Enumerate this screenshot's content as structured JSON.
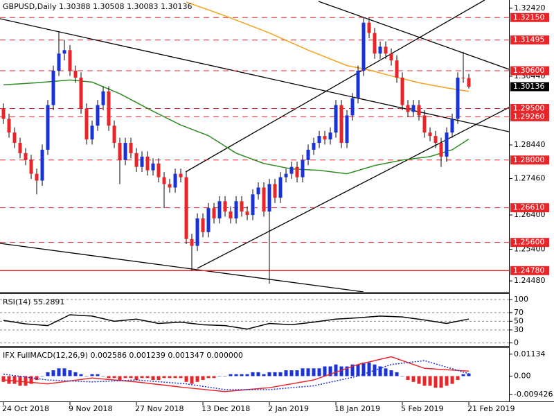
{
  "chart_data": [
    {
      "type": "candlestick",
      "title": "GBPUSD,Daily  1.30388 1.30508 1.30083 1.30136",
      "categories": [
        "24 Oct 2018",
        null,
        null,
        null,
        null,
        null,
        null,
        null,
        null,
        null,
        null,
        null,
        "9 Nov 2018",
        null,
        null,
        null,
        null,
        null,
        null,
        null,
        null,
        null,
        null,
        null,
        "27 Nov 2018",
        null,
        null,
        null,
        null,
        null,
        null,
        null,
        null,
        null,
        null,
        null,
        "13 Dec 2018",
        null,
        null,
        null,
        null,
        null,
        null,
        null,
        null,
        null,
        null,
        null,
        "2 Jan 2019",
        null,
        null,
        null,
        null,
        null,
        null,
        null,
        null,
        null,
        null,
        null,
        "18 Jan 2019",
        null,
        null,
        null,
        null,
        null,
        null,
        null,
        null,
        null,
        null,
        null,
        "5 Feb 2019",
        null,
        null,
        null,
        null,
        null,
        null,
        null,
        null,
        null,
        null,
        null,
        "21 Feb 2019"
      ],
      "open": [
        1.295,
        1.292,
        1.288,
        1.285,
        1.282,
        1.28,
        1.276,
        1.274,
        1.283,
        1.296,
        1.306,
        1.311,
        1.312,
        1.306,
        1.304,
        1.295,
        1.286,
        1.29,
        1.296,
        1.3,
        1.29,
        1.285,
        1.28,
        1.285,
        1.282,
        1.278,
        1.281,
        1.277,
        1.279,
        1.275,
        1.273,
        1.272,
        1.276,
        1.275,
        1.257,
        1.255,
        1.263,
        1.259,
        1.266,
        1.263,
        1.268,
        1.265,
        1.263,
        1.268,
        1.265,
        1.264,
        1.27,
        1.272,
        1.265,
        1.273,
        1.269,
        1.275,
        1.276,
        1.278,
        1.275,
        1.28,
        1.283,
        1.285,
        1.287,
        1.286,
        1.288,
        1.296,
        1.285,
        1.293,
        1.298,
        1.306,
        1.32,
        1.317,
        1.311,
        1.313,
        1.311,
        1.309,
        1.304,
        1.296,
        1.294,
        1.296,
        1.293,
        1.288,
        1.287,
        1.285,
        1.281,
        1.288,
        1.292,
        1.304,
        1.30388
      ],
      "high": [
        1.2965,
        1.2935,
        1.2895,
        1.2865,
        1.2835,
        1.2815,
        1.2775,
        1.2845,
        1.2975,
        1.3075,
        1.3175,
        1.315,
        1.3135,
        1.3075,
        1.3055,
        1.2965,
        1.2915,
        1.2975,
        1.3015,
        1.3015,
        1.2915,
        1.2865,
        1.2865,
        1.2865,
        1.2835,
        1.2825,
        1.2825,
        1.2805,
        1.2805,
        1.2765,
        1.2745,
        1.2775,
        1.2775,
        1.2765,
        1.2585,
        1.2645,
        1.2645,
        1.2675,
        1.2675,
        1.2695,
        1.2695,
        1.2665,
        1.2695,
        1.2695,
        1.2665,
        1.2715,
        1.2735,
        1.2735,
        1.2745,
        1.2745,
        1.2765,
        1.2775,
        1.2795,
        1.2795,
        1.2815,
        1.2845,
        1.2865,
        1.2885,
        1.2885,
        1.2895,
        1.2975,
        1.2975,
        1.2945,
        1.2995,
        1.3075,
        1.3215,
        1.3215,
        1.3185,
        1.3145,
        1.3145,
        1.3125,
        1.3105,
        1.3055,
        1.2975,
        1.2975,
        1.2975,
        1.2945,
        1.2895,
        1.2885,
        1.2865,
        1.2895,
        1.2935,
        1.3055,
        1.3115,
        1.30508
      ],
      "low": [
        1.2905,
        1.2865,
        1.2835,
        1.2805,
        1.2785,
        1.2745,
        1.27,
        1.2725,
        1.2815,
        1.2945,
        1.3045,
        1.309,
        1.3045,
        1.3025,
        1.2935,
        1.2845,
        1.2845,
        1.2885,
        1.2945,
        1.2885,
        1.2835,
        1.273,
        1.2785,
        1.2805,
        1.2765,
        1.2765,
        1.2755,
        1.2755,
        1.2735,
        1.266,
        1.2705,
        1.2705,
        1.2735,
        1.2555,
        1.2478,
        1.2535,
        1.2575,
        1.2575,
        1.2615,
        1.2615,
        1.2635,
        1.2615,
        1.2615,
        1.2635,
        1.2625,
        1.2625,
        1.2685,
        1.2635,
        1.244,
        1.2675,
        1.2675,
        1.2735,
        1.2745,
        1.2735,
        1.2735,
        1.2785,
        1.2815,
        1.2835,
        1.2845,
        1.2845,
        1.2865,
        1.2835,
        1.2835,
        1.2915,
        1.2965,
        1.3045,
        1.3155,
        1.3095,
        1.3095,
        1.3095,
        1.3075,
        1.3025,
        1.2945,
        1.2925,
        1.2925,
        1.2915,
        1.2865,
        1.2855,
        1.2835,
        1.278,
        1.2795,
        1.2865,
        1.2905,
        1.3025,
        1.30083
      ],
      "close": [
        1.292,
        1.288,
        1.285,
        1.282,
        1.28,
        1.276,
        1.274,
        1.283,
        1.296,
        1.306,
        1.311,
        1.312,
        1.306,
        1.304,
        1.295,
        1.286,
        1.29,
        1.296,
        1.3,
        1.29,
        1.285,
        1.28,
        1.285,
        1.282,
        1.278,
        1.281,
        1.277,
        1.279,
        1.275,
        1.273,
        1.272,
        1.276,
        1.275,
        1.257,
        1.255,
        1.263,
        1.259,
        1.266,
        1.263,
        1.268,
        1.265,
        1.263,
        1.268,
        1.265,
        1.264,
        1.27,
        1.272,
        1.265,
        1.273,
        1.269,
        1.275,
        1.276,
        1.278,
        1.275,
        1.28,
        1.283,
        1.285,
        1.287,
        1.286,
        1.288,
        1.296,
        1.285,
        1.293,
        1.298,
        1.306,
        1.32,
        1.317,
        1.311,
        1.313,
        1.311,
        1.309,
        1.304,
        1.296,
        1.294,
        1.296,
        1.293,
        1.288,
        1.287,
        1.285,
        1.281,
        1.288,
        1.292,
        1.304,
        1.3039,
        1.30136
      ],
      "up_color": "#1a33d6",
      "down_color": "#e8262a",
      "wick_color": "#000000",
      "ylim": [
        1.2416,
        1.3266
      ],
      "yticks": [
        {
          "value": 1.3242,
          "label": "1.32420"
        },
        {
          "value": 1.3044,
          "label": "1.30440"
        },
        {
          "value": 1.2844,
          "label": "1.28440"
        },
        {
          "value": 1.2746,
          "label": "1.27460"
        },
        {
          "value": 1.264,
          "label": "1.26400"
        },
        {
          "value": 1.254,
          "label": "1.25400"
        },
        {
          "value": 1.2448,
          "label": "1.24480"
        }
      ],
      "levels": [
        {
          "value": 1.3215,
          "label": "1.32150"
        },
        1.31495,
        {
          "value": 1.306,
          "label": "1.30600"
        },
        {
          "value": 1.295,
          "label": "1.29500"
        },
        {
          "value": 1.2926,
          "label": "1.29260"
        },
        {
          "value": 1.28,
          "label": "1.28000"
        },
        {
          "value": 1.2661,
          "label": "1.26610"
        },
        {
          "value": 1.256,
          "label": "1.25600"
        },
        {
          "value": 1.2478,
          "label": "1.24780",
          "solid": true
        }
      ],
      "level_color": "#e8262a",
      "current": 1.30136,
      "current_color": "#000000",
      "lines": [
        {
          "color": "#f5a11e",
          "x": [
            33,
            40,
            48,
            55,
            62,
            66,
            70,
            75,
            80,
            84
          ],
          "values": [
            1.326,
            1.322,
            1.317,
            1.312,
            1.3075,
            1.3062,
            1.3045,
            1.3025,
            1.301,
            1.3
          ]
        },
        {
          "color": "#2e8b22",
          "x": [
            0,
            6,
            12,
            16,
            21,
            27,
            32,
            37,
            42,
            47,
            52,
            57,
            62,
            67,
            72,
            77,
            81,
            84
          ],
          "values": [
            1.3019,
            1.3025,
            1.3033,
            1.3027,
            1.2993,
            1.2942,
            1.2902,
            1.2871,
            1.282,
            1.279,
            1.2774,
            1.277,
            1.276,
            1.2784,
            1.28,
            1.281,
            1.283,
            1.2861
          ]
        }
      ]
    },
    {
      "type": "line",
      "title": "RSI(14) 55.2891",
      "x": [
        0,
        4,
        8,
        12,
        16,
        20,
        24,
        28,
        32,
        36,
        40,
        44,
        48,
        52,
        56,
        60,
        64,
        68,
        72,
        76,
        80,
        84
      ],
      "values": [
        52,
        44,
        40,
        65,
        62,
        50,
        55,
        45,
        48,
        42,
        40,
        32,
        45,
        42,
        48,
        55,
        58,
        62,
        60,
        53,
        45,
        55.2891
      ],
      "color": "#000000",
      "ylim": [
        -7,
        113
      ],
      "yticks": [
        0,
        30,
        50,
        70,
        100
      ],
      "grid": true
    },
    {
      "type": "macd",
      "title": "IFX FullMACD(12,26,9) 0.002586 0.001239 0.001347 0.000000",
      "values": [
        -0.003,
        -0.004,
        -0.004,
        -0.005,
        -0.005,
        -0.004,
        -0.002,
        0.0,
        0.002,
        0.003,
        0.004,
        0.004,
        0.003,
        0.002,
        0.001,
        0.0,
        0.001,
        0.001,
        0.0,
        -0.001,
        -0.001,
        -0.002,
        -0.001,
        -0.001,
        -0.002,
        -0.001,
        -0.001,
        -0.002,
        -0.002,
        -0.001,
        -0.001,
        -0.001,
        -0.001,
        -0.003,
        -0.004,
        -0.003,
        -0.002,
        -0.001,
        -0.001,
        0.0,
        0.0,
        0.001,
        0.001,
        0.001,
        0.001,
        0.002,
        0.002,
        0.001,
        0.002,
        0.002,
        0.002,
        0.003,
        0.003,
        0.003,
        0.004,
        0.004,
        0.004,
        0.004,
        0.005,
        0.005,
        0.006,
        0.005,
        0.005,
        0.006,
        0.006,
        0.007,
        0.007,
        0.006,
        0.005,
        0.004,
        0.003,
        0.002,
        0.0,
        -0.002,
        -0.003,
        -0.004,
        -0.005,
        -0.005,
        -0.006,
        -0.006,
        -0.005,
        -0.004,
        -0.002,
        0.001,
        0.001347
      ],
      "pos_color": "#1a33d6",
      "neg_color": "#e8262a",
      "series": [
        {
          "color": "#e8262a",
          "x": [
            0,
            8,
            16,
            24,
            33,
            40,
            48,
            56,
            64,
            70,
            76,
            84
          ],
          "values": [
            -0.002,
            -0.004,
            -0.001,
            -0.003,
            -0.006,
            -0.008,
            -0.006,
            -0.002,
            0.006,
            0.01,
            0.004,
            0.002586
          ],
          "dashed": false
        },
        {
          "color": "#1a33d6",
          "x": [
            0,
            8,
            16,
            24,
            33,
            40,
            48,
            56,
            64,
            70,
            76,
            84
          ],
          "values": [
            0.001,
            -0.002,
            -0.003,
            -0.002,
            -0.004,
            -0.007,
            -0.007,
            -0.005,
            0.0,
            0.006,
            0.008,
            0.001239
          ],
          "dashed": true
        }
      ],
      "ylim": [
        -0.0131,
        0.0145
      ],
      "yticks": [
        0.01134,
        {
          "value": 0,
          "label": "0.00"
        },
        -0.009426
      ]
    }
  ]
}
